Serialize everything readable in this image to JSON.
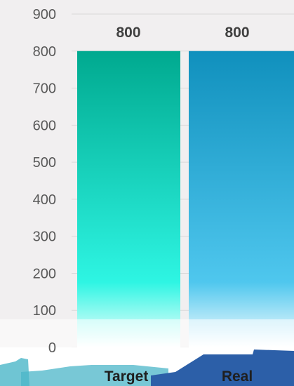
{
  "chart_data": {
    "type": "bar",
    "title": "",
    "xlabel": "",
    "ylabel": "",
    "categories": [
      "Target",
      "Real"
    ],
    "values": [
      800,
      800
    ],
    "ylim": [
      0,
      900
    ],
    "yticks": [
      "0",
      "100",
      "200",
      "300",
      "400",
      "500",
      "600",
      "700",
      "800",
      "900"
    ],
    "data_labels": [
      "800",
      "800"
    ],
    "grid": true,
    "legend": "none"
  },
  "colors": {
    "plot_background": "#F1EFF0",
    "gridline": "#D9D9D9",
    "tick_label": "#595959",
    "data_label": "#404040",
    "category_label": "#1F1F1F",
    "bar1_top": "#00A98F",
    "bar1_mid": "#2EF5E3",
    "bar2_top": "#1090BD",
    "bar2_mid": "#4FC7EE",
    "bar_fade": "#FFFFFF",
    "bottom_strip_left": "#4BB6C8",
    "bottom_strip_right": "#2C5FA8"
  }
}
